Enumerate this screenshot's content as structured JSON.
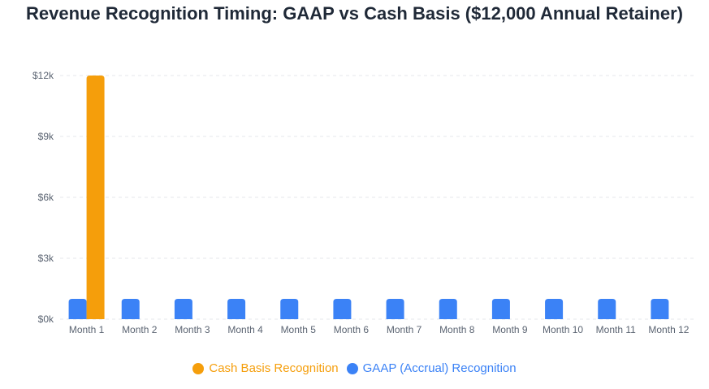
{
  "chart_data": {
    "type": "bar",
    "title": "Revenue Recognition Timing: GAAP vs Cash Basis ($12,000 Annual Retainer)",
    "categories": [
      "Month 1",
      "Month 2",
      "Month 3",
      "Month 4",
      "Month 5",
      "Month 6",
      "Month 7",
      "Month 8",
      "Month 9",
      "Month 10",
      "Month 11",
      "Month 12"
    ],
    "series": [
      {
        "name": "GAAP (Accrual) Recognition",
        "color": "#3b82f6",
        "values": [
          1000,
          1000,
          1000,
          1000,
          1000,
          1000,
          1000,
          1000,
          1000,
          1000,
          1000,
          1000
        ]
      },
      {
        "name": "Cash Basis Recognition",
        "color": "#f59e0b",
        "values": [
          12000,
          0,
          0,
          0,
          0,
          0,
          0,
          0,
          0,
          0,
          0,
          0
        ]
      }
    ],
    "legend_order": [
      1,
      0
    ],
    "ylim": [
      0,
      12000
    ],
    "yticks": [
      0,
      3000,
      6000,
      9000,
      12000
    ],
    "ytick_labels": [
      "$0k",
      "$3k",
      "$6k",
      "$9k",
      "$12k"
    ],
    "xlabel": "",
    "ylabel": "",
    "grid": true,
    "legend_position": "bottom"
  }
}
